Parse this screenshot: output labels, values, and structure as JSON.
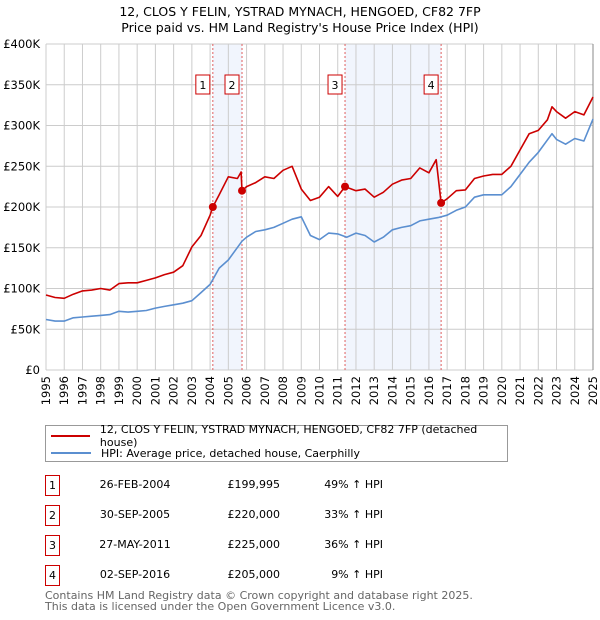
{
  "chart_data": {
    "type": "line",
    "title": "12, CLOS Y FELIN, YSTRAD MYNACH, HENGOED, CF82 7FP",
    "subtitle": "Price paid vs. HM Land Registry's House Price Index (HPI)",
    "xlim": [
      1995,
      2025
    ],
    "ylim": [
      0,
      400000
    ],
    "x_ticks": [
      "1995",
      "1996",
      "1997",
      "1998",
      "1999",
      "2000",
      "2001",
      "2002",
      "2003",
      "2004",
      "2005",
      "2006",
      "2007",
      "2008",
      "2009",
      "2010",
      "2011",
      "2012",
      "2013",
      "2014",
      "2015",
      "2016",
      "2017",
      "2018",
      "2019",
      "2020",
      "2021",
      "2022",
      "2023",
      "2024",
      "2025"
    ],
    "y_ticks": [
      {
        "v": 0,
        "label": "£0"
      },
      {
        "v": 50000,
        "label": "£50K"
      },
      {
        "v": 100000,
        "label": "£100K"
      },
      {
        "v": 150000,
        "label": "£150K"
      },
      {
        "v": 200000,
        "label": "£200K"
      },
      {
        "v": 250000,
        "label": "£250K"
      },
      {
        "v": 300000,
        "label": "£300K"
      },
      {
        "v": 350000,
        "label": "£350K"
      },
      {
        "v": 400000,
        "label": "£400K"
      }
    ],
    "grid": true,
    "shaded_ranges": [
      [
        2004.15,
        2005.75
      ],
      [
        2011.4,
        2016.67
      ]
    ],
    "series": [
      {
        "name": "12, CLOS Y FELIN, YSTRAD MYNACH, HENGOED, CF82 7FP (detached house)",
        "color": "#cc0000",
        "x": [
          1995,
          1995.5,
          1996,
          1996.5,
          1997,
          1997.5,
          1998,
          1998.5,
          1999,
          1999.5,
          2000,
          2000.5,
          2001,
          2001.5,
          2002,
          2002.5,
          2003,
          2003.5,
          2004,
          2004.15,
          2004.5,
          2005,
          2005.5,
          2005.7,
          2005.75,
          2006,
          2006.5,
          2007,
          2007.5,
          2008,
          2008.5,
          2009,
          2009.5,
          2010,
          2010.5,
          2011,
          2011.4,
          2012,
          2012.5,
          2013,
          2013.5,
          2014,
          2014.5,
          2015,
          2015.5,
          2016,
          2016.4,
          2016.67,
          2017,
          2017.5,
          2018,
          2018.5,
          2019,
          2019.5,
          2020,
          2020.5,
          2021,
          2021.5,
          2022,
          2022.5,
          2022.75,
          2023,
          2023.5,
          2024,
          2024.5,
          2025
        ],
        "y": [
          92000,
          89000,
          88000,
          93000,
          97000,
          98000,
          100000,
          98000,
          106000,
          107000,
          107000,
          110000,
          113000,
          117000,
          120000,
          128000,
          151000,
          165000,
          190000,
          200000,
          215000,
          237000,
          235000,
          243000,
          220000,
          225000,
          230000,
          237000,
          235000,
          245000,
          250000,
          222000,
          208000,
          212000,
          225000,
          213000,
          225000,
          220000,
          222000,
          212000,
          218000,
          228000,
          233000,
          235000,
          248000,
          242000,
          258000,
          205000,
          210000,
          220000,
          221000,
          235000,
          238000,
          240000,
          240000,
          250000,
          270000,
          290000,
          294000,
          307000,
          323000,
          317000,
          309000,
          317000,
          313000,
          335000
        ]
      },
      {
        "name": "HPI: Average price, detached house, Caerphilly",
        "color": "#5b8fd0",
        "x": [
          1995,
          1995.5,
          1996,
          1996.5,
          1997,
          1997.5,
          1998,
          1998.5,
          1999,
          1999.5,
          2000,
          2000.5,
          2001,
          2001.5,
          2002,
          2002.5,
          2003,
          2003.5,
          2004,
          2004.5,
          2005,
          2005.75,
          2006,
          2006.5,
          2007,
          2007.5,
          2008,
          2008.5,
          2009,
          2009.5,
          2010,
          2010.5,
          2011,
          2011.5,
          2012,
          2012.5,
          2013,
          2013.5,
          2014,
          2014.5,
          2015,
          2015.5,
          2016,
          2016.5,
          2017,
          2017.5,
          2018,
          2018.5,
          2019,
          2019.5,
          2020,
          2020.5,
          2021,
          2021.5,
          2022,
          2022.75,
          2023,
          2023.5,
          2024,
          2024.5,
          2025
        ],
        "y": [
          62000,
          60000,
          60000,
          64000,
          65000,
          66000,
          67000,
          68000,
          72000,
          71000,
          72000,
          73000,
          76000,
          78000,
          80000,
          82000,
          85000,
          95000,
          105000,
          125000,
          135000,
          158000,
          163000,
          170000,
          172000,
          175000,
          180000,
          185000,
          188000,
          165000,
          160000,
          168000,
          167000,
          163000,
          168000,
          165000,
          157000,
          163000,
          172000,
          175000,
          177000,
          183000,
          185000,
          187000,
          190000,
          196000,
          200000,
          212000,
          215000,
          215000,
          215000,
          225000,
          240000,
          255000,
          267000,
          290000,
          283000,
          277000,
          284000,
          281000,
          308000
        ]
      }
    ],
    "sales": [
      {
        "id": "1",
        "x": 2004.15,
        "y": 199995
      },
      {
        "id": "2",
        "x": 2005.75,
        "y": 220000
      },
      {
        "id": "3",
        "x": 2011.4,
        "y": 225000
      },
      {
        "id": "4",
        "x": 2016.67,
        "y": 205000
      }
    ]
  },
  "header": {
    "title": "12, CLOS Y FELIN, YSTRAD MYNACH, HENGOED, CF82 7FP",
    "subtitle": "Price paid vs. HM Land Registry's House Price Index (HPI)"
  },
  "legend": {
    "property": "12, CLOS Y FELIN, YSTRAD MYNACH, HENGOED, CF82 7FP (detached house)",
    "hpi": "HPI: Average price, detached house, Caerphilly"
  },
  "transactions": [
    {
      "num": "1",
      "date": "26-FEB-2004",
      "price": "£199,995",
      "hpi": "49% ↑ HPI"
    },
    {
      "num": "2",
      "date": "30-SEP-2005",
      "price": "£220,000",
      "hpi": "33% ↑ HPI"
    },
    {
      "num": "3",
      "date": "27-MAY-2011",
      "price": "£225,000",
      "hpi": "36% ↑ HPI"
    },
    {
      "num": "4",
      "date": "02-SEP-2016",
      "price": "£205,000",
      "hpi": "9% ↑ HPI"
    }
  ],
  "footer": {
    "line1": "Contains HM Land Registry data © Crown copyright and database right 2025.",
    "line2": "This data is licensed under the Open Government Licence v3.0."
  }
}
